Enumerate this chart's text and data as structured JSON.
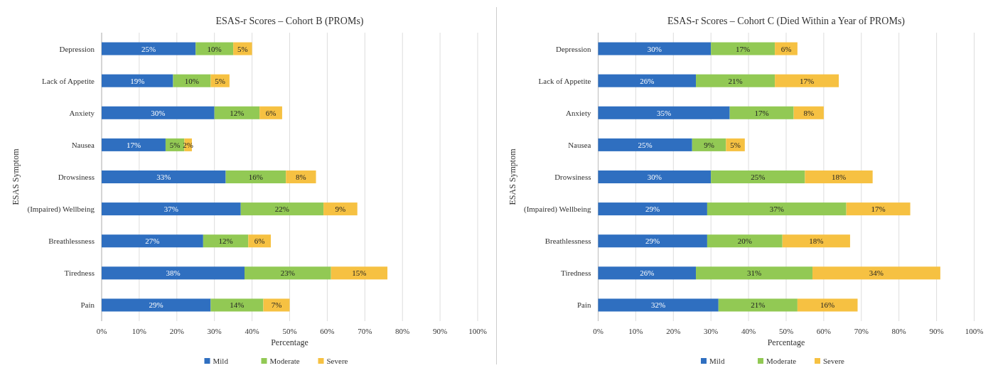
{
  "chart_data": [
    {
      "type": "bar",
      "orientation": "horizontal",
      "stacked": true,
      "title": "ESAS-r Scores – Cohort B (PROMs)",
      "xlabel": "Percentage",
      "ylabel": "ESAS Symptom",
      "categories": [
        "Depression",
        "Lack of Appetite",
        "Anxiety",
        "Nausea",
        "Drowsiness",
        "(Impaired) Wellbeing",
        "Breathlessness",
        "Tiredness",
        "Pain"
      ],
      "series": [
        {
          "name": "Mild",
          "color": "#2f6fc0",
          "values": [
            25,
            19,
            30,
            17,
            33,
            37,
            27,
            38,
            29
          ],
          "value_labels": [
            "25%",
            "19%",
            "30%",
            "17%",
            "33%",
            "37%",
            "27%",
            "38%",
            "29%"
          ]
        },
        {
          "name": "Moderate",
          "color": "#92c954",
          "values": [
            10,
            10,
            12,
            5,
            16,
            22,
            12,
            23,
            14
          ],
          "value_labels": [
            "10%",
            "10%",
            "12%",
            "5%",
            "16%",
            "22%",
            "12%",
            "23%",
            "14%"
          ]
        },
        {
          "name": "Severe",
          "color": "#f6c142",
          "values": [
            5,
            5,
            6,
            2,
            8,
            9,
            6,
            15,
            7
          ],
          "value_labels": [
            "5%",
            "5%",
            "6%",
            "2%",
            "8%",
            "9%",
            "6%",
            "15%",
            "7%"
          ]
        }
      ],
      "xlim": [
        0,
        100
      ],
      "xticks": [
        {
          "value": 0,
          "label": "0%"
        },
        {
          "value": 10,
          "label": "10%"
        },
        {
          "value": 20,
          "label": "20%"
        },
        {
          "value": 30,
          "label": "30%"
        },
        {
          "value": 40,
          "label": "40%"
        },
        {
          "value": 50,
          "label": "50%"
        },
        {
          "value": 60,
          "label": "60%"
        },
        {
          "value": 70,
          "label": "70%"
        },
        {
          "value": 80,
          "label": "80%"
        },
        {
          "value": 90,
          "label": "90%"
        },
        {
          "value": 100,
          "label": "100%"
        }
      ],
      "grid": "x",
      "legend": "bottom"
    },
    {
      "type": "bar",
      "orientation": "horizontal",
      "stacked": true,
      "title": "ESAS-r Scores – Cohort C (Died Within a Year of PROMs)",
      "xlabel": "Percentage",
      "ylabel": "ESAS Symptom",
      "categories": [
        "Depression",
        "Lack of Appetite",
        "Anxiety",
        "Nausea",
        "Drowsiness",
        "(Impaired) Wellbeing",
        "Breathlessness",
        "Tiredness",
        "Pain"
      ],
      "series": [
        {
          "name": "Mild",
          "color": "#2f6fc0",
          "values": [
            30,
            26,
            35,
            25,
            30,
            29,
            29,
            26,
            32
          ],
          "value_labels": [
            "30%",
            "26%",
            "35%",
            "25%",
            "30%",
            "29%",
            "29%",
            "26%",
            "32%"
          ]
        },
        {
          "name": "Moderate",
          "color": "#92c954",
          "values": [
            17,
            21,
            17,
            9,
            25,
            37,
            20,
            31,
            21
          ],
          "value_labels": [
            "17%",
            "21%",
            "17%",
            "9%",
            "25%",
            "37%",
            "20%",
            "31%",
            "21%"
          ]
        },
        {
          "name": "Severe",
          "color": "#f6c142",
          "values": [
            6,
            17,
            8,
            5,
            18,
            17,
            18,
            34,
            16
          ],
          "value_labels": [
            "6%",
            "17%",
            "8%",
            "5%",
            "18%",
            "17%",
            "18%",
            "34%",
            "16%"
          ]
        }
      ],
      "xlim": [
        0,
        100
      ],
      "xticks": [
        {
          "value": 0,
          "label": "0%"
        },
        {
          "value": 10,
          "label": "10%"
        },
        {
          "value": 20,
          "label": "20%"
        },
        {
          "value": 30,
          "label": "30%"
        },
        {
          "value": 40,
          "label": "40%"
        },
        {
          "value": 50,
          "label": "50%"
        },
        {
          "value": 60,
          "label": "60%"
        },
        {
          "value": 70,
          "label": "70%"
        },
        {
          "value": 80,
          "label": "80%"
        },
        {
          "value": 90,
          "label": "90%"
        },
        {
          "value": 100,
          "label": "100%"
        }
      ],
      "grid": "x",
      "legend": "bottom"
    }
  ]
}
